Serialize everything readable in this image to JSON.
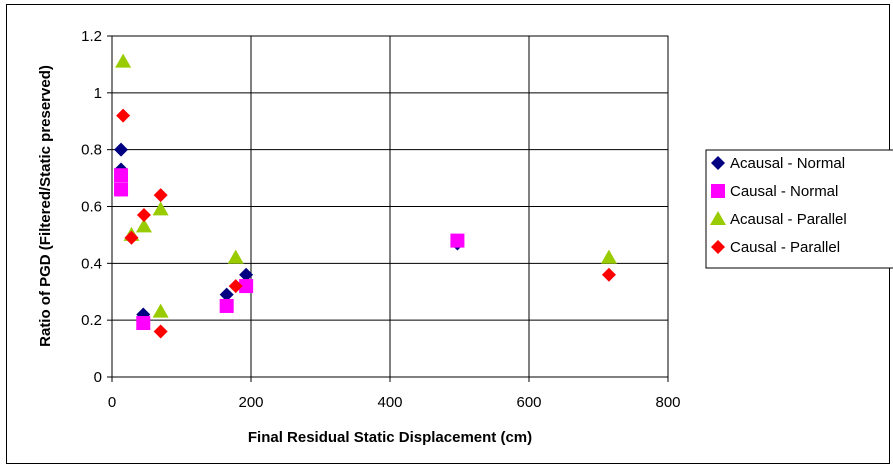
{
  "chart_data": {
    "type": "scatter",
    "title": "",
    "xlabel": "Final Residual Static Displacement (cm)",
    "ylabel": "Ratio of PGD (Filtered/Static preserved)",
    "xlim": [
      0,
      800
    ],
    "ylim": [
      0,
      1.2
    ],
    "xticks": [
      "0",
      "200",
      "400",
      "600",
      "800"
    ],
    "yticks": [
      "0",
      "0.2",
      "0.4",
      "0.6",
      "0.8",
      "1",
      "1.2"
    ],
    "grid": true,
    "legend_position": "right",
    "series": [
      {
        "name": "Acausal - Normal",
        "marker": "diamond",
        "color": "#000080",
        "points": [
          [
            13,
            0.8
          ],
          [
            13,
            0.73
          ],
          [
            45,
            0.22
          ],
          [
            165,
            0.29
          ],
          [
            193,
            0.36
          ],
          [
            497,
            0.47
          ]
        ]
      },
      {
        "name": "Causal - Normal",
        "marker": "square",
        "color": "#ff00ff",
        "points": [
          [
            13,
            0.71
          ],
          [
            13,
            0.66
          ],
          [
            45,
            0.19
          ],
          [
            165,
            0.25
          ],
          [
            193,
            0.32
          ],
          [
            497,
            0.48
          ]
        ]
      },
      {
        "name": "Acausal - Parallel",
        "marker": "triangle",
        "color": "#99cc00",
        "points": [
          [
            16,
            1.11
          ],
          [
            28,
            0.5
          ],
          [
            46,
            0.53
          ],
          [
            70,
            0.59
          ],
          [
            70,
            0.23
          ],
          [
            178,
            0.42
          ],
          [
            715,
            0.42
          ]
        ]
      },
      {
        "name": "Causal - Parallel",
        "marker": "diamond",
        "color": "#ff0000",
        "points": [
          [
            16,
            0.92
          ],
          [
            28,
            0.49
          ],
          [
            46,
            0.57
          ],
          [
            70,
            0.64
          ],
          [
            70,
            0.16
          ],
          [
            178,
            0.32
          ],
          [
            715,
            0.36
          ]
        ]
      }
    ]
  }
}
